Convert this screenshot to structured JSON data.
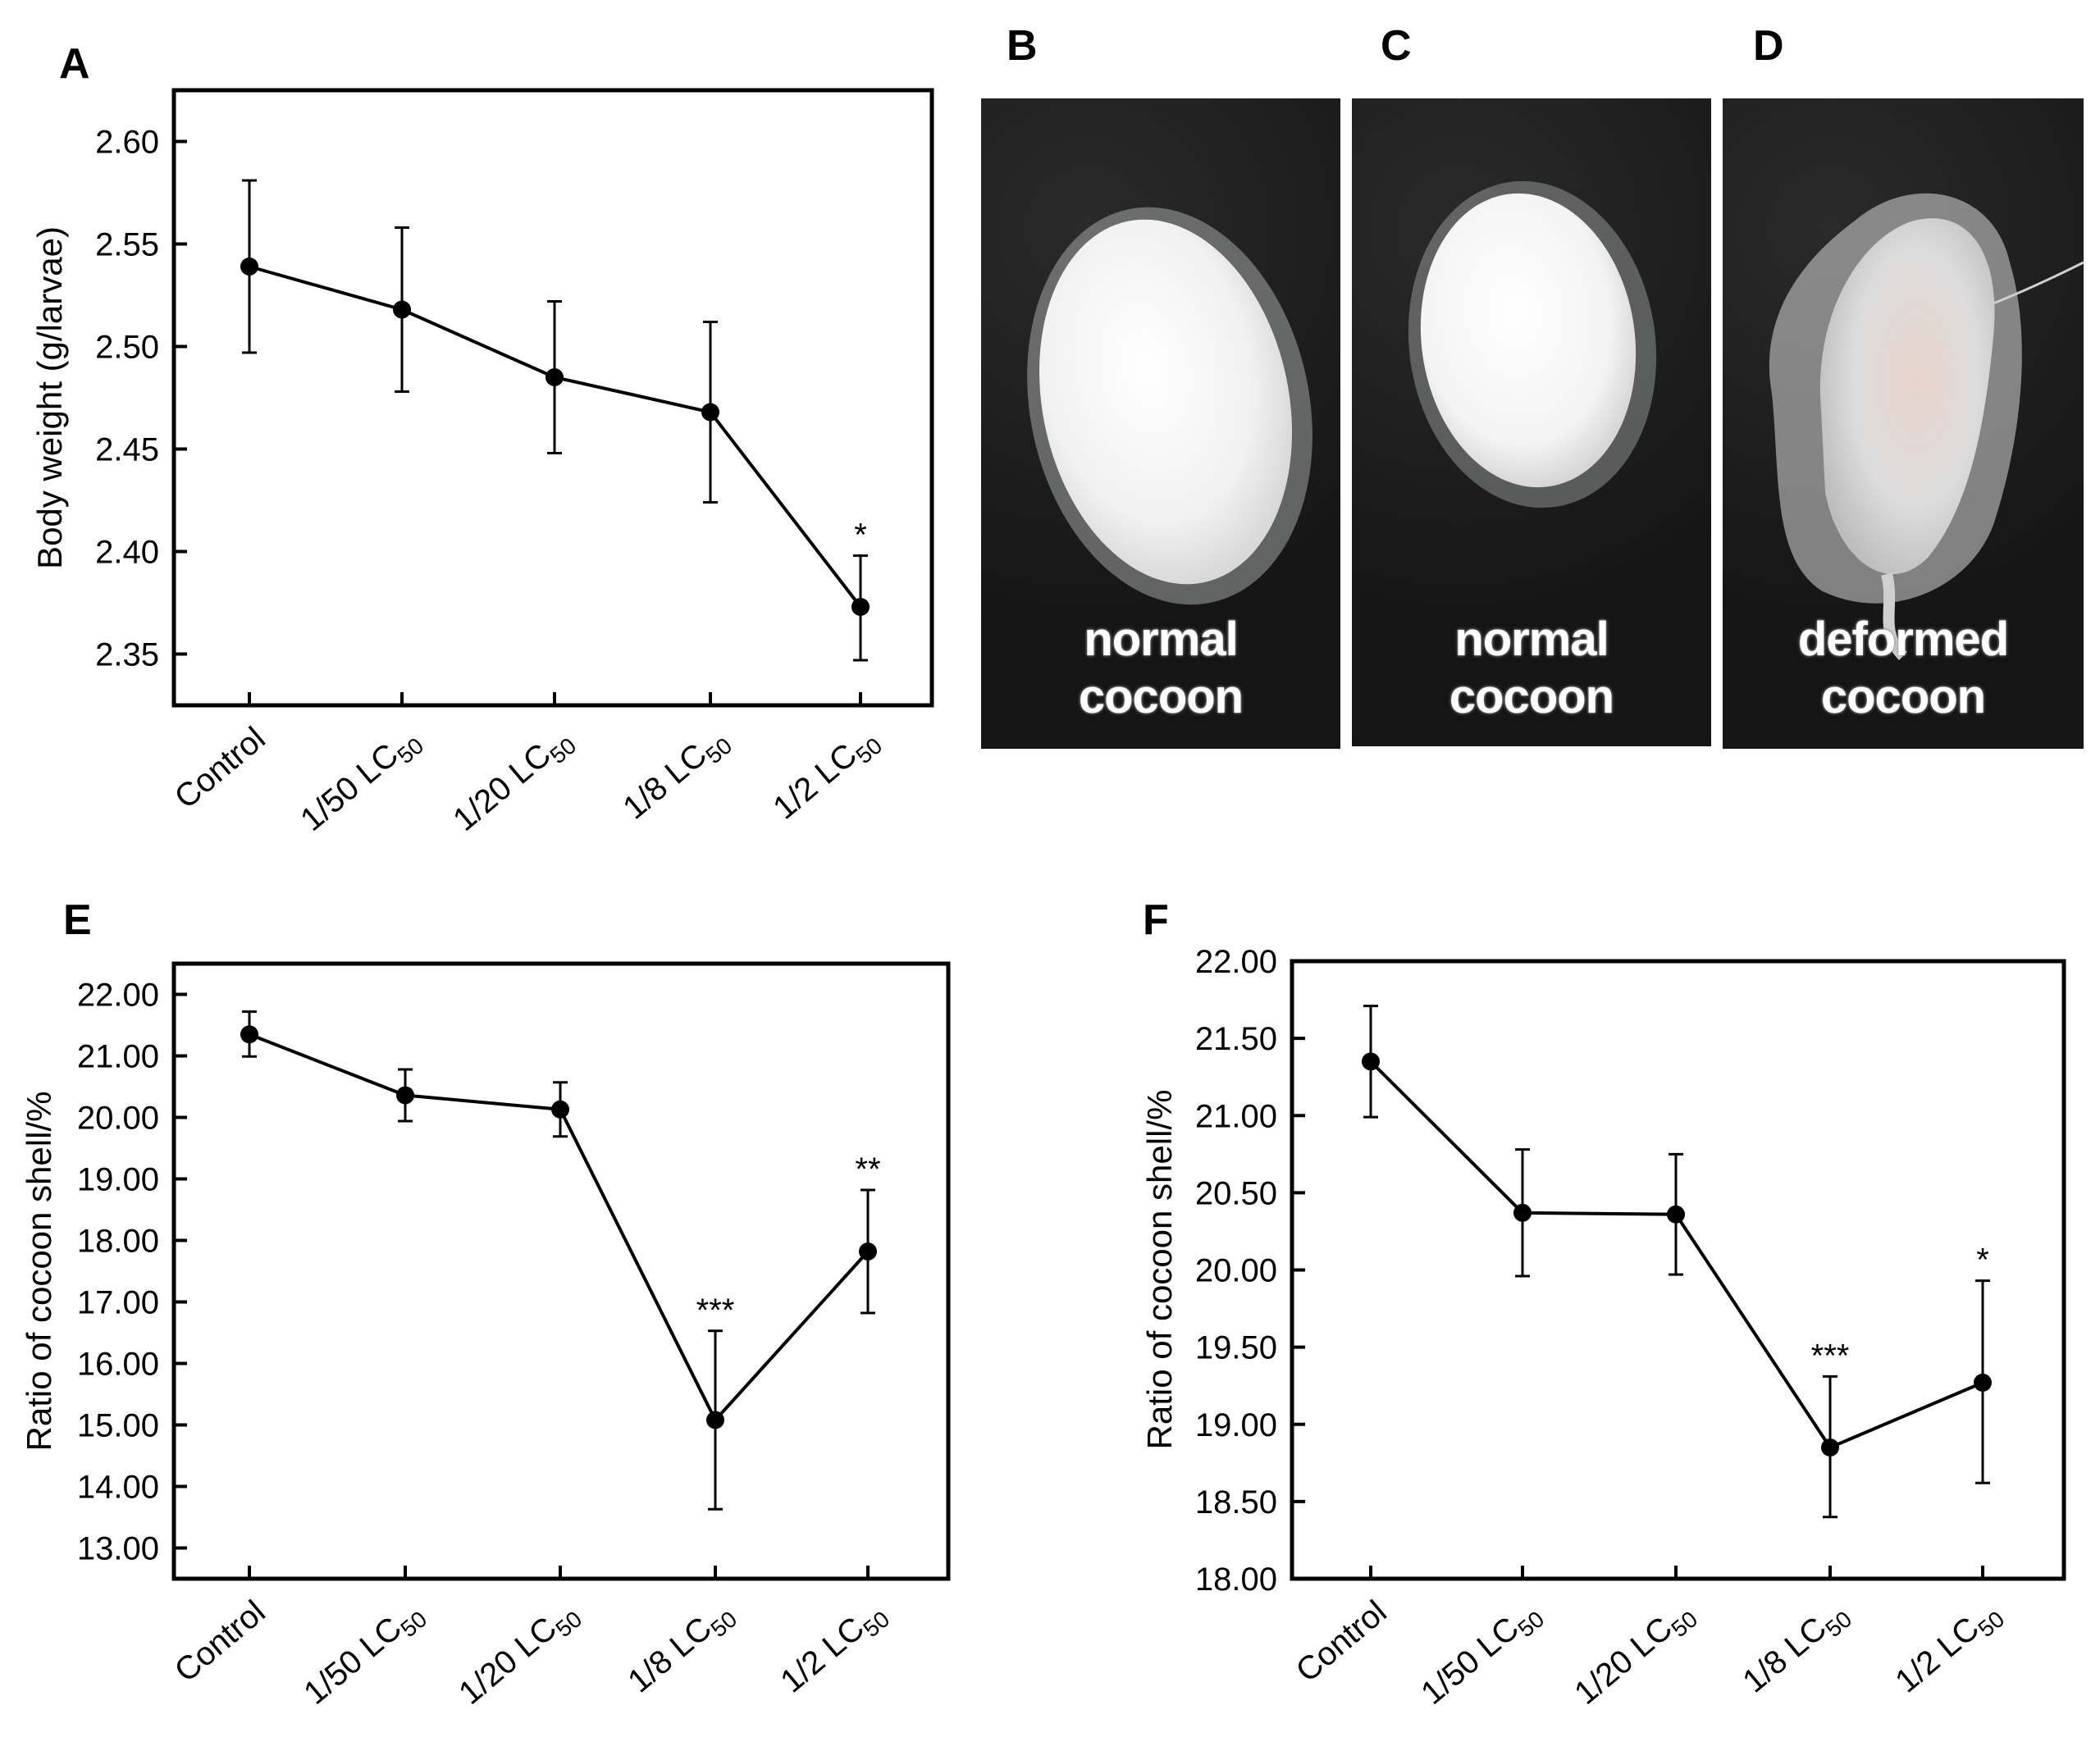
{
  "panels": {
    "A": "A",
    "B": "B",
    "C": "C",
    "D": "D",
    "E": "E",
    "F": "F"
  },
  "photos": [
    {
      "line1": "normal",
      "line2": "cocoon",
      "kind": "normal"
    },
    {
      "line1": "normal",
      "line2": "cocoon",
      "kind": "normal"
    },
    {
      "line1": "deformed",
      "line2": "cocoon",
      "kind": "deformed"
    }
  ],
  "chart_data": [
    {
      "id": "A",
      "type": "line",
      "ylabel": "Body weight (g/larvae)",
      "categories": [
        {
          "main": "Control",
          "sub": ""
        },
        {
          "main": "1/50 LC",
          "sub": "50"
        },
        {
          "main": "1/20 LC",
          "sub": "50"
        },
        {
          "main": "1/8 LC",
          "sub": "50"
        },
        {
          "main": "1/2 LC",
          "sub": "50"
        }
      ],
      "values": [
        2.539,
        2.518,
        2.485,
        2.468,
        2.373
      ],
      "err_up": [
        2.581,
        2.558,
        2.522,
        2.512,
        2.398
      ],
      "err_down": [
        2.497,
        2.478,
        2.448,
        2.424,
        2.347
      ],
      "sig": [
        "",
        "",
        "",
        "",
        "*"
      ],
      "yticks": [
        2.35,
        2.4,
        2.45,
        2.5,
        2.55,
        2.6
      ],
      "tick_labels": [
        "2.35",
        "2.40",
        "2.45",
        "2.50",
        "2.55",
        "2.60"
      ],
      "ylim": [
        2.325,
        2.625
      ]
    },
    {
      "id": "E",
      "type": "line",
      "ylabel": "Ratio of cocoon shell/%",
      "categories": [
        {
          "main": "Control",
          "sub": ""
        },
        {
          "main": "1/50 LC",
          "sub": "50"
        },
        {
          "main": "1/20 LC",
          "sub": "50"
        },
        {
          "main": "1/8 LC",
          "sub": "50"
        },
        {
          "main": "1/2 LC",
          "sub": "50"
        }
      ],
      "values": [
        21.35,
        20.36,
        20.13,
        15.08,
        17.82
      ],
      "err_up": [
        21.72,
        20.78,
        20.57,
        16.53,
        18.82
      ],
      "err_down": [
        20.99,
        19.94,
        19.69,
        13.63,
        16.82
      ],
      "sig": [
        "",
        "",
        "",
        "***",
        "**"
      ],
      "yticks": [
        13,
        14,
        15,
        16,
        17,
        18,
        19,
        20,
        21,
        22
      ],
      "tick_labels": [
        "13.00",
        "14.00",
        "15.00",
        "16.00",
        "17.00",
        "18.00",
        "19.00",
        "20.00",
        "21.00",
        "22.00"
      ],
      "ylim": [
        12.5,
        22.5
      ]
    },
    {
      "id": "F",
      "type": "line",
      "ylabel": "Ratio of cocoon shell/%",
      "categories": [
        {
          "main": "Control",
          "sub": ""
        },
        {
          "main": "1/50 LC",
          "sub": "50"
        },
        {
          "main": "1/20 LC",
          "sub": "50"
        },
        {
          "main": "1/8 LC",
          "sub": "50"
        },
        {
          "main": "1/2 LC",
          "sub": "50"
        }
      ],
      "values": [
        21.35,
        20.37,
        20.36,
        18.85,
        19.27
      ],
      "err_up": [
        21.71,
        20.78,
        20.75,
        19.31,
        19.93
      ],
      "err_down": [
        20.99,
        19.96,
        19.97,
        18.4,
        18.62
      ],
      "sig": [
        "",
        "",
        "",
        "***",
        "*"
      ],
      "yticks": [
        18.0,
        18.5,
        19.0,
        19.5,
        20.0,
        20.5,
        21.0,
        21.5,
        22.0
      ],
      "tick_labels": [
        "18.00",
        "18.50",
        "19.00",
        "19.50",
        "20.00",
        "20.50",
        "21.00",
        "21.50",
        "22.00"
      ],
      "ylim": [
        18.0,
        22.0
      ]
    }
  ]
}
